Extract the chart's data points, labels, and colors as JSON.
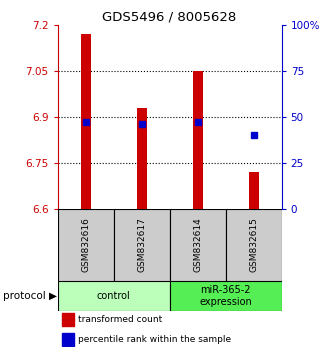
{
  "title": "GDS5496 / 8005628",
  "samples": [
    "GSM832616",
    "GSM832617",
    "GSM832614",
    "GSM832615"
  ],
  "red_values": [
    7.17,
    6.93,
    7.05,
    6.72
  ],
  "blue_values": [
    47,
    46,
    47,
    40
  ],
  "ylim_left": [
    6.6,
    7.2
  ],
  "ylim_right": [
    0,
    100
  ],
  "yticks_left": [
    6.6,
    6.75,
    6.9,
    7.05,
    7.2
  ],
  "yticks_right": [
    0,
    25,
    50,
    75,
    100
  ],
  "ytick_labels_left": [
    "6.6",
    "6.75",
    "6.9",
    "7.05",
    "7.2"
  ],
  "ytick_labels_right": [
    "0",
    "25",
    "50",
    "75",
    "100%"
  ],
  "bar_color": "#cc0000",
  "dot_color": "#0000cc",
  "baseline": 6.6,
  "groups": [
    {
      "label": "control",
      "indices": [
        0,
        1
      ],
      "color": "#bbffbb"
    },
    {
      "label": "miR-365-2\nexpression",
      "indices": [
        2,
        3
      ],
      "color": "#55ee55"
    }
  ],
  "protocol_label": "protocol",
  "legend_items": [
    {
      "color": "#cc0000",
      "label": "transformed count"
    },
    {
      "color": "#0000cc",
      "label": "percentile rank within the sample"
    }
  ],
  "sample_box_color": "#cccccc",
  "bar_width": 0.18
}
